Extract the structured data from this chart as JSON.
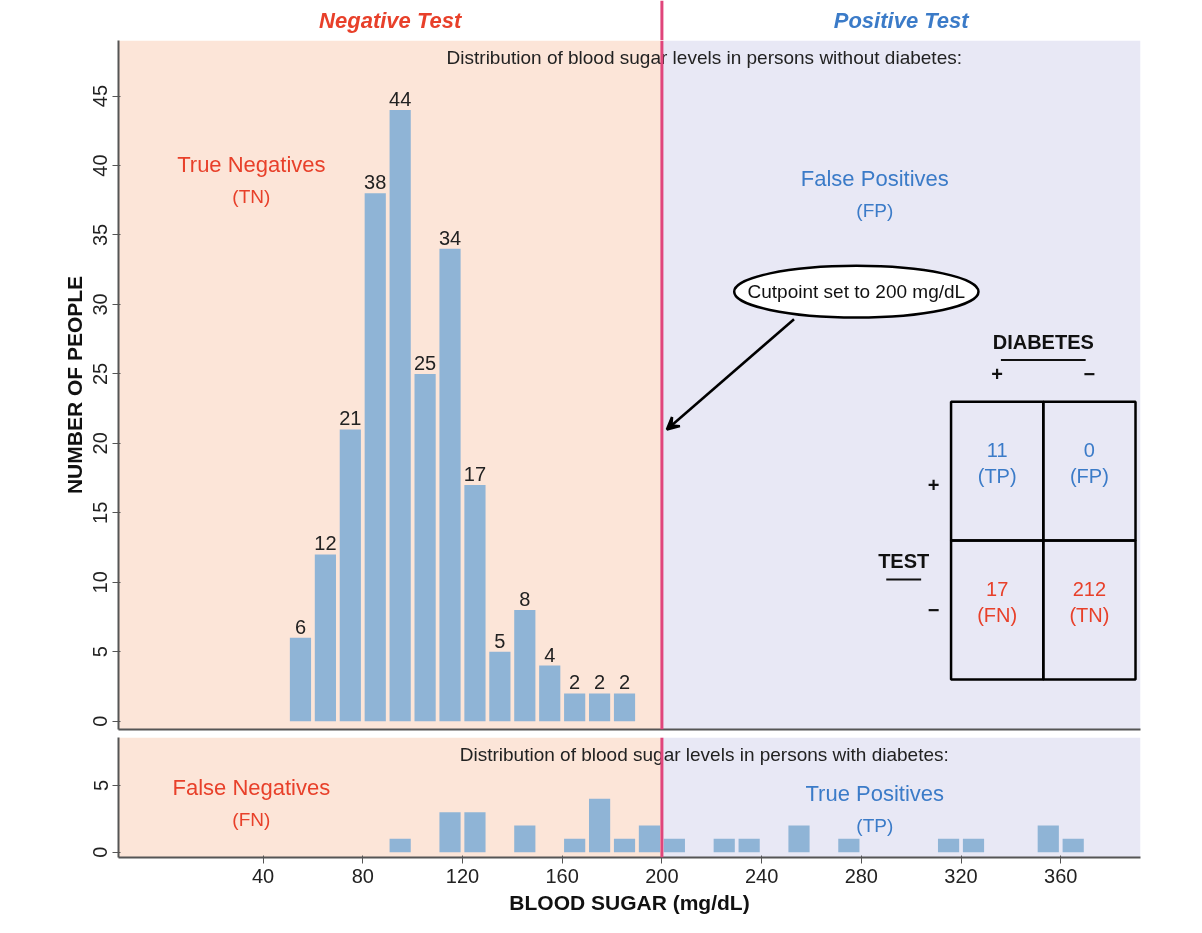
{
  "chart_data": [
    {
      "type": "histogram",
      "subtitle": "Distribution of blood sugar levels in persons without diabetes:",
      "ylabel": "NUMBER OF PEOPLE",
      "bins": [
        50,
        60,
        70,
        80,
        90,
        100,
        110,
        120,
        130,
        140,
        150,
        160,
        170,
        180,
        190
      ],
      "values": [
        6,
        12,
        21,
        38,
        44,
        25,
        34,
        17,
        5,
        8,
        4,
        2,
        2,
        2
      ],
      "color": "#8fb4d6",
      "data_labels": true,
      "xlim": [
        -18,
        392
      ],
      "ylim": [
        -0.6,
        49
      ],
      "yticks": [
        0,
        5,
        10,
        15,
        20,
        25,
        30,
        35,
        40,
        45
      ],
      "tick_labels": "y",
      "bands": [
        {
          "axis": "x",
          "from": -18,
          "to": 200,
          "label": "Negative Test",
          "color": "#fce5d8"
        },
        {
          "axis": "x",
          "from": 200,
          "to": 392,
          "label": "Positive Test",
          "color": "#e8e8f5"
        }
      ],
      "ref_lines": [
        {
          "axis": "x",
          "value": 200,
          "color": "#e0457b"
        }
      ],
      "annotations": [
        "True Negatives\n(TN)",
        "False Positives\n(FP)",
        {
          "text": "Cutpoint set to 200 mg/dL",
          "x": 200,
          "y": 21
        },
        "DIABETES",
        "+",
        "−",
        "TEST",
        "+",
        "−",
        "11\n(TP)",
        "0\n(FP)",
        "17\n(FN)",
        "212\n(TN)"
      ]
    },
    {
      "type": "histogram",
      "subtitle": "Distribution of blood sugar levels in persons with diabetes:",
      "xlabel": "BLOOD SUGAR (mg/dL)",
      "bins": [
        90,
        100,
        110,
        120,
        130,
        140,
        150,
        160,
        170,
        180,
        190,
        200,
        210,
        220,
        230,
        240,
        250,
        260,
        270,
        280,
        290,
        300,
        310,
        320,
        330,
        340,
        350,
        360,
        370
      ],
      "values": [
        1,
        0,
        3,
        3,
        0,
        2,
        0,
        1,
        4,
        1,
        2,
        1,
        0,
        1,
        1,
        0,
        2,
        0,
        1,
        0,
        0,
        0,
        1,
        1,
        0,
        0,
        2,
        1
      ],
      "color": "#8fb4d6",
      "xlim": [
        -18,
        392
      ],
      "xticks": [
        40,
        80,
        120,
        160,
        200,
        240,
        280,
        320,
        360
      ],
      "ylim": [
        -0.4,
        8.6
      ],
      "yticks": [
        0,
        5
      ],
      "bands": [
        {
          "axis": "x",
          "from": -18,
          "to": 200,
          "color": "#fce5d8"
        },
        {
          "axis": "x",
          "from": 200,
          "to": 392,
          "color": "#e8e8f5"
        }
      ],
      "ref_lines": [
        {
          "axis": "x",
          "value": 200,
          "color": "#e0457b"
        }
      ],
      "annotations": [
        "False Negatives\n(FN)",
        "True Positives\n(TP)"
      ]
    }
  ]
}
